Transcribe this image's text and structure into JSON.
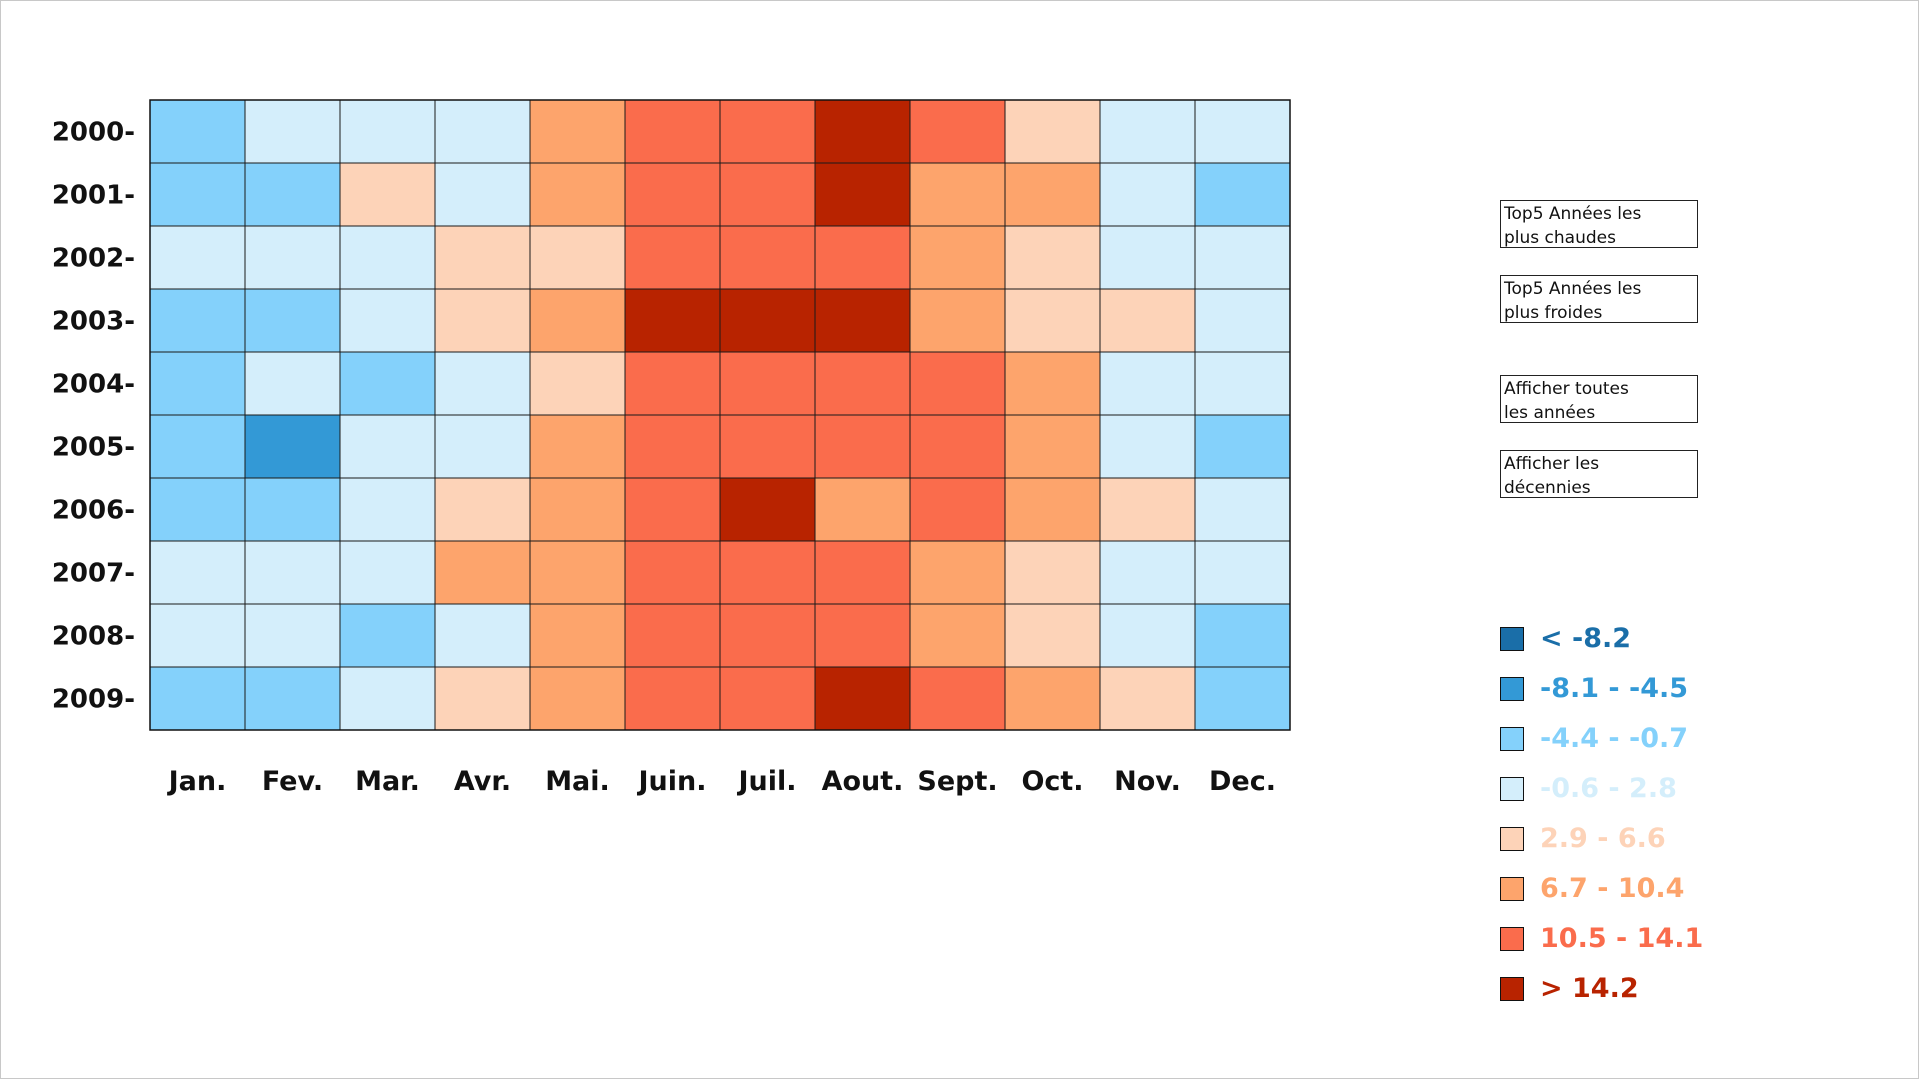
{
  "chart_data": {
    "type": "heatmap",
    "x_categories": [
      "Jan.",
      "Fev.",
      "Mar.",
      "Avr.",
      "Mai.",
      "Juin.",
      "Juil.",
      "Aout.",
      "Sept.",
      "Oct.",
      "Nov.",
      "Dec."
    ],
    "y_categories": [
      "2000-",
      "2001-",
      "2002-",
      "2003-",
      "2004-",
      "2005-",
      "2006-",
      "2007-",
      "2008-",
      "2009-"
    ],
    "bins": [
      {
        "label": "< -8.2",
        "color": "#1a6ea8"
      },
      {
        "label": "-8.1 - -4.5",
        "color": "#3399d6"
      },
      {
        "label": "-4.4 - -0.7",
        "color": "#84d1fb"
      },
      {
        "label": "-0.6 - 2.8",
        "color": "#d4eefb"
      },
      {
        "label": "2.9 - 6.6",
        "color": "#fdd3b8"
      },
      {
        "label": "6.7 - 10.4",
        "color": "#fda46c"
      },
      {
        "label": "10.5 - 14.1",
        "color": "#fa6c4c"
      },
      {
        "label": "> 14.2",
        "color": "#b82300"
      }
    ],
    "value_bin_indices": [
      [
        2,
        3,
        3,
        3,
        5,
        6,
        6,
        7,
        6,
        4,
        3,
        3
      ],
      [
        2,
        2,
        4,
        3,
        5,
        6,
        6,
        7,
        5,
        5,
        3,
        2
      ],
      [
        3,
        3,
        3,
        4,
        4,
        6,
        6,
        6,
        5,
        4,
        3,
        3
      ],
      [
        2,
        2,
        3,
        4,
        5,
        7,
        7,
        7,
        5,
        4,
        4,
        3
      ],
      [
        2,
        3,
        2,
        3,
        4,
        6,
        6,
        6,
        6,
        5,
        3,
        3
      ],
      [
        2,
        1,
        3,
        3,
        5,
        6,
        6,
        6,
        6,
        5,
        3,
        2
      ],
      [
        2,
        2,
        3,
        4,
        5,
        6,
        7,
        5,
        6,
        5,
        4,
        3
      ],
      [
        3,
        3,
        3,
        5,
        5,
        6,
        6,
        6,
        5,
        4,
        3,
        3
      ],
      [
        3,
        3,
        2,
        3,
        5,
        6,
        6,
        6,
        5,
        4,
        3,
        2
      ],
      [
        2,
        2,
        3,
        4,
        5,
        6,
        6,
        7,
        6,
        5,
        4,
        2
      ]
    ]
  },
  "buttons": {
    "top5_hot": [
      "Top5 Années les",
      "plus chaudes"
    ],
    "top5_cold": [
      "Top5 Années les",
      "plus froides"
    ],
    "all_years": [
      "Afficher toutes",
      "les années"
    ],
    "decades": [
      "Afficher les",
      "décennies"
    ]
  }
}
